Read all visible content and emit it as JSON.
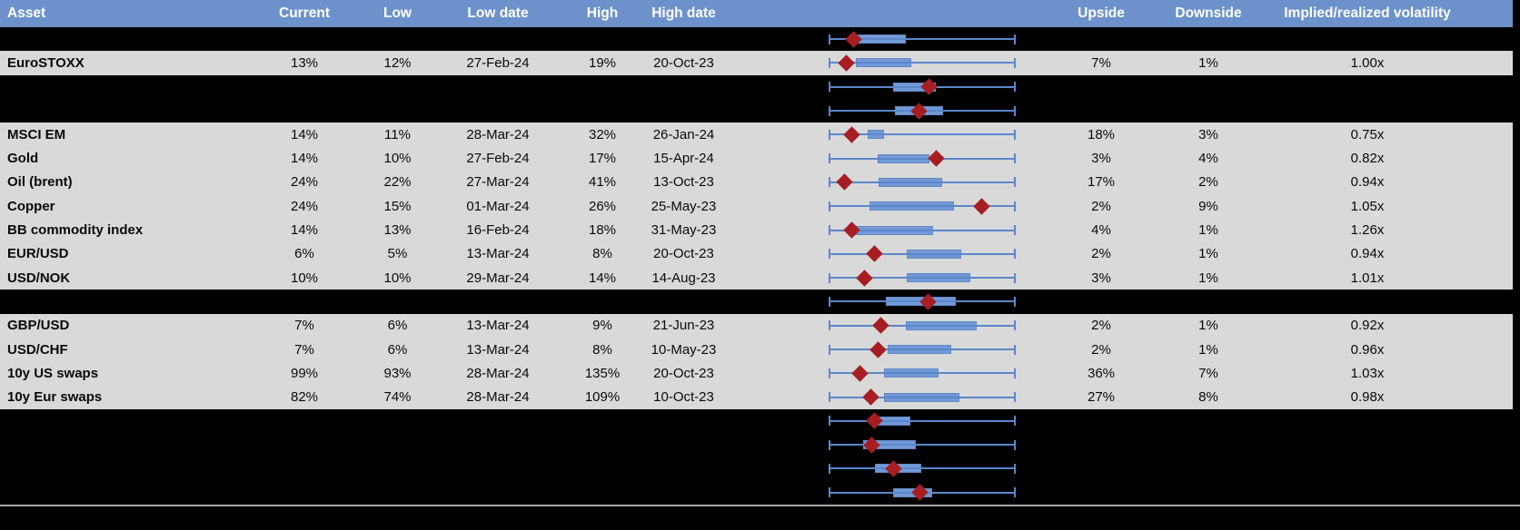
{
  "colors": {
    "header_bg": "#6d92cb",
    "header_text": "#ffffff",
    "row_bg": "#d9d9d9",
    "hidden_row_bg": "#000000",
    "whisker_blue": "#5b87cb",
    "box_fill": "#7099d6",
    "box_border": "#6288c5",
    "marker_red": "#a71e22",
    "divider_gray": "#a9a9a9"
  },
  "header": {
    "columns": {
      "asset": "Asset",
      "current": "Current",
      "low": "Low",
      "low_date": "Low date",
      "high": "High",
      "high_date": "High date",
      "upside": "Upside",
      "downside": "Downside",
      "vol": "Implied/realized volatility"
    }
  },
  "rows": [
    {
      "hidden": true,
      "plot": {
        "lo": 0.108,
        "hi": 0.412,
        "marker": 0.132
      }
    },
    {
      "hidden": false,
      "asset": "EuroSTOXX",
      "current": "13%",
      "low": "12%",
      "low_date": "27-Feb-24",
      "high": "19%",
      "high_date": "20-Oct-23",
      "upside": "7%",
      "downside": "1%",
      "vol": "1.00x",
      "plot": {
        "lo": 0.141,
        "hi": 0.443,
        "marker": 0.092
      }
    },
    {
      "hidden": true,
      "plot": {
        "lo": 0.343,
        "hi": 0.574,
        "marker": 0.539
      }
    },
    {
      "hidden": true,
      "plot": {
        "lo": 0.353,
        "hi": 0.613,
        "marker": 0.484
      }
    },
    {
      "hidden": false,
      "asset": "MSCI EM",
      "current": "14%",
      "low": "11%",
      "low_date": "28-Mar-24",
      "high": "32%",
      "high_date": "26-Jan-24",
      "upside": "18%",
      "downside": "3%",
      "vol": "0.75x",
      "plot": {
        "lo": 0.206,
        "hi": 0.294,
        "marker": 0.118
      }
    },
    {
      "hidden": false,
      "asset": "Gold",
      "current": "14%",
      "low": "10%",
      "low_date": "27-Feb-24",
      "high": "17%",
      "high_date": "15-Apr-24",
      "upside": "3%",
      "downside": "4%",
      "vol": "0.82x",
      "plot": {
        "lo": 0.26,
        "hi": 0.539,
        "marker": 0.574
      }
    },
    {
      "hidden": false,
      "asset": "Oil (brent)",
      "current": "24%",
      "low": "22%",
      "low_date": "27-Mar-24",
      "high": "41%",
      "high_date": "13-Oct-23",
      "upside": "17%",
      "downside": "2%",
      "vol": "0.94x",
      "plot": {
        "lo": 0.265,
        "hi": 0.608,
        "marker": 0.083
      }
    },
    {
      "hidden": false,
      "asset": "Copper",
      "current": "24%",
      "low": "15%",
      "low_date": "01-Mar-24",
      "high": "26%",
      "high_date": "25-May-23",
      "upside": "2%",
      "downside": "9%",
      "vol": "1.05x",
      "plot": {
        "lo": 0.216,
        "hi": 0.672,
        "marker": 0.819
      }
    },
    {
      "hidden": false,
      "asset": "BB commodity index",
      "current": "14%",
      "low": "13%",
      "low_date": "16-Feb-24",
      "high": "18%",
      "high_date": "31-May-23",
      "upside": "4%",
      "downside": "1%",
      "vol": "1.26x",
      "plot": {
        "lo": 0.132,
        "hi": 0.559,
        "marker": 0.118
      }
    },
    {
      "hidden": false,
      "asset": "EUR/USD",
      "current": "6%",
      "low": "5%",
      "low_date": "13-Mar-24",
      "high": "8%",
      "high_date": "20-Oct-23",
      "upside": "2%",
      "downside": "1%",
      "vol": "0.94x",
      "plot": {
        "lo": 0.417,
        "hi": 0.711,
        "marker": 0.245
      }
    },
    {
      "hidden": false,
      "asset": "USD/NOK",
      "current": "10%",
      "low": "10%",
      "low_date": "29-Mar-24",
      "high": "14%",
      "high_date": "14-Aug-23",
      "upside": "3%",
      "downside": "1%",
      "vol": "1.01x",
      "plot": {
        "lo": 0.417,
        "hi": 0.76,
        "marker": 0.191
      }
    },
    {
      "hidden": true,
      "plot": {
        "lo": 0.304,
        "hi": 0.681,
        "marker": 0.534
      }
    },
    {
      "hidden": false,
      "asset": "GBP/USD",
      "current": "7%",
      "low": "6%",
      "low_date": "13-Mar-24",
      "high": "9%",
      "high_date": "21-Jun-23",
      "upside": "2%",
      "downside": "1%",
      "vol": "0.92x",
      "plot": {
        "lo": 0.412,
        "hi": 0.794,
        "marker": 0.279
      }
    },
    {
      "hidden": false,
      "asset": "USD/CHF",
      "current": "7%",
      "low": "6%",
      "low_date": "13-Mar-24",
      "high": "8%",
      "high_date": "10-May-23",
      "upside": "2%",
      "downside": "1%",
      "vol": "0.96x",
      "plot": {
        "lo": 0.314,
        "hi": 0.657,
        "marker": 0.26
      }
    },
    {
      "hidden": false,
      "asset": "10y US swaps",
      "current": "99%",
      "low": "93%",
      "low_date": "28-Mar-24",
      "high": "135%",
      "high_date": "20-Oct-23",
      "upside": "36%",
      "downside": "7%",
      "vol": "1.03x",
      "plot": {
        "lo": 0.294,
        "hi": 0.588,
        "marker": 0.162
      }
    },
    {
      "hidden": false,
      "asset": "10y Eur swaps",
      "current": "82%",
      "low": "74%",
      "low_date": "28-Mar-24",
      "high": "109%",
      "high_date": "10-Oct-23",
      "upside": "27%",
      "downside": "8%",
      "vol": "0.98x",
      "plot": {
        "lo": 0.294,
        "hi": 0.701,
        "marker": 0.221
      }
    },
    {
      "hidden": true,
      "plot": {
        "lo": 0.26,
        "hi": 0.436,
        "marker": 0.245
      }
    },
    {
      "hidden": true,
      "plot": {
        "lo": 0.181,
        "hi": 0.466,
        "marker": 0.23
      }
    },
    {
      "hidden": true,
      "plot": {
        "lo": 0.245,
        "hi": 0.495,
        "marker": 0.348
      }
    },
    {
      "hidden": true,
      "plot": {
        "lo": 0.343,
        "hi": 0.554,
        "marker": 0.49
      }
    }
  ]
}
